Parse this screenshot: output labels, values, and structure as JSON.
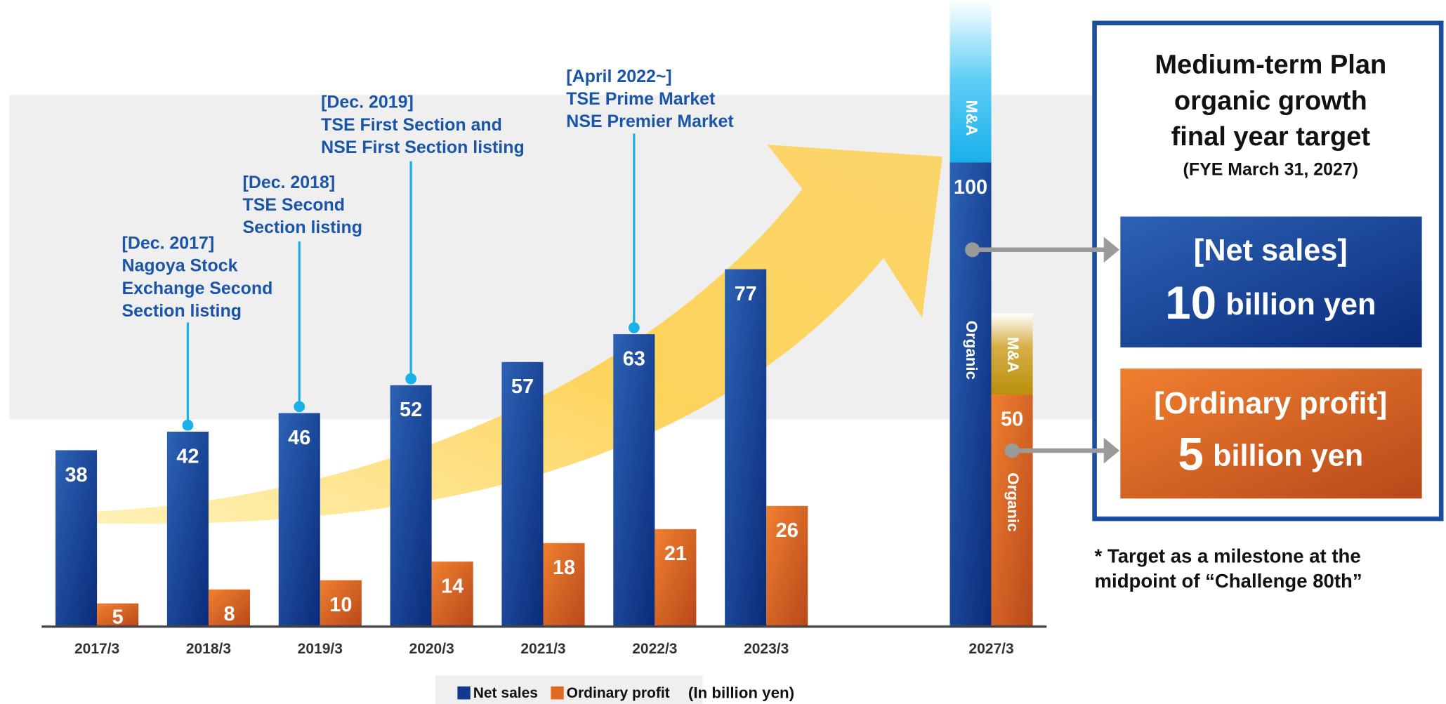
{
  "chart_data": {
    "type": "bar",
    "categories": [
      "2017/3",
      "2018/3",
      "2019/3",
      "2020/3",
      "2021/3",
      "2022/3",
      "2023/3",
      "2027/3"
    ],
    "series": [
      {
        "name": "Net sales",
        "color": "#0f3a8f",
        "values": [
          38,
          42,
          46,
          52,
          57,
          63,
          77,
          100
        ]
      },
      {
        "name": "Ordinary profit",
        "color": "#e06a22",
        "values": [
          5,
          8,
          10,
          14,
          18,
          21,
          26,
          50
        ]
      }
    ],
    "ylim": [
      0,
      135
    ],
    "unit_note": "(In billion yen)",
    "segment_labels": {
      "ma": "M&A",
      "organic": "Organic"
    },
    "annotations": [
      [
        "[Dec. 2017]",
        "Nagoya Stock",
        "Exchange Second",
        "Section listing"
      ],
      [
        "[Dec. 2018]",
        "TSE Second",
        "Section listing"
      ],
      [
        "[Dec. 2019]",
        "TSE First Section and",
        "NSE First Section listing"
      ],
      [
        "[April 2022~]",
        "TSE Prime Market",
        "NSE Premier Market"
      ]
    ]
  },
  "panel": {
    "title": [
      "Medium-term Plan",
      "organic growth",
      "final year target"
    ],
    "subtitle": "(FYE March 31, 2027)",
    "net_sales": {
      "label": "[Net sales]",
      "value": 10,
      "unit": "billion yen"
    },
    "ordinary_profit": {
      "label": "[Ordinary profit]",
      "value": 5,
      "unit": "billion yen"
    }
  },
  "note": [
    "* Target as a milestone at the",
    "midpoint of “Challenge 80th”"
  ]
}
